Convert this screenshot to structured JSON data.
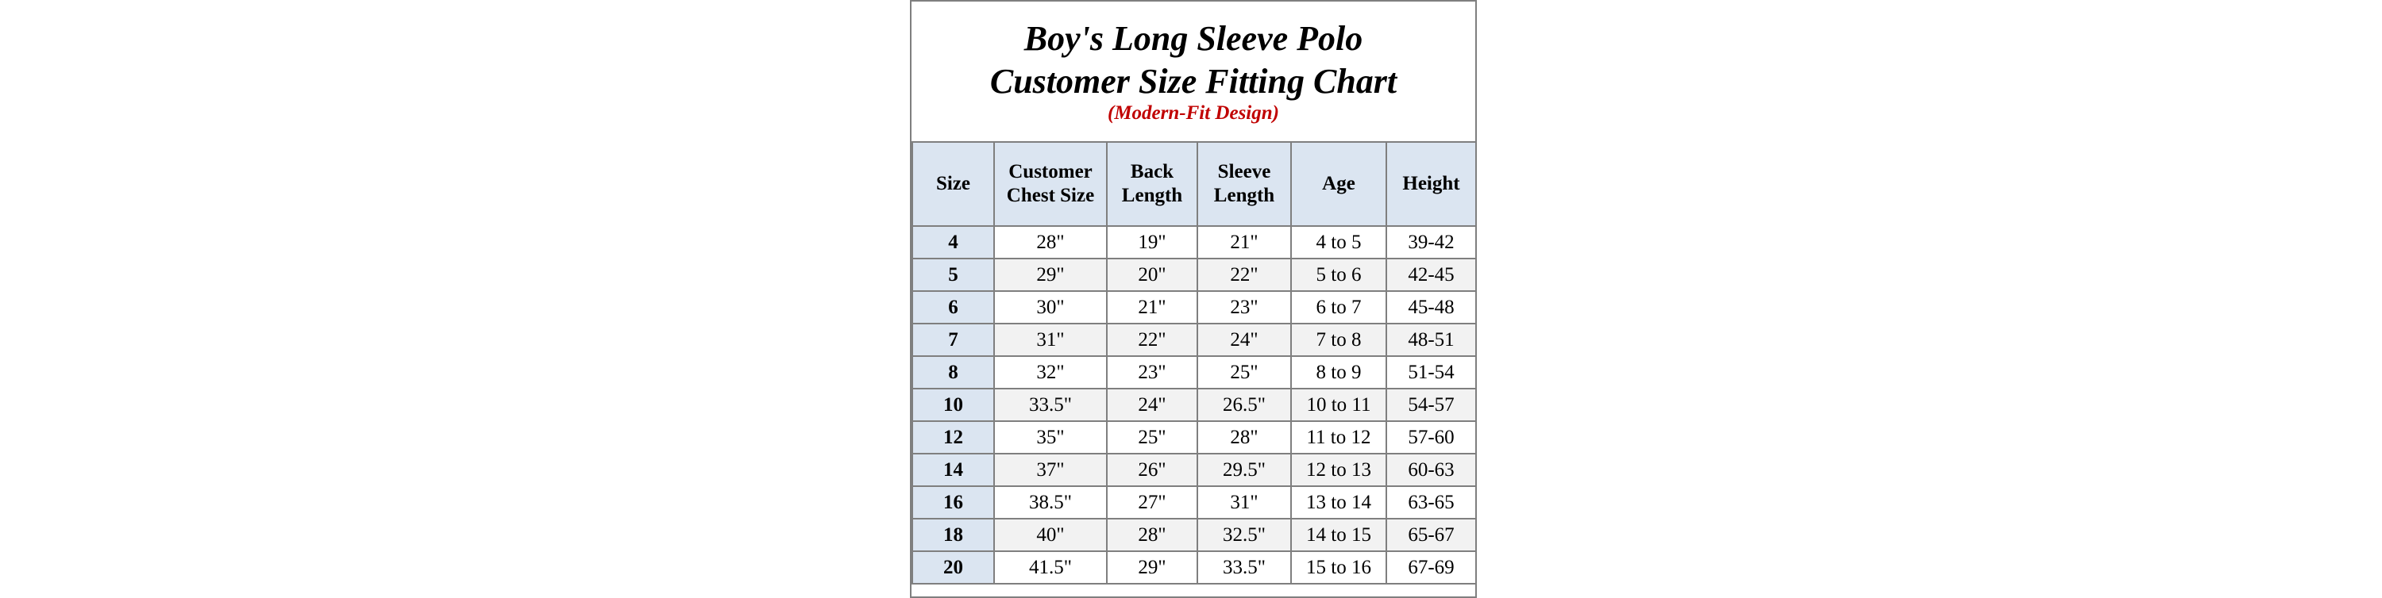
{
  "title": {
    "line1": "Boy's Long Sleeve Polo",
    "line2": "Customer Size Fitting Chart",
    "subtitle": "(Modern-Fit Design)"
  },
  "colors": {
    "subtitle": "#c00000",
    "header_fill": "#dbe5f1",
    "stripe_fill": "#f2f2f2",
    "grid": "#7f7f7f"
  },
  "table": {
    "headers": [
      [
        "Size"
      ],
      [
        "Customer",
        "Chest Size"
      ],
      [
        "Back",
        "Length"
      ],
      [
        "Sleeve",
        "Length"
      ],
      [
        "Age"
      ],
      [
        "Height"
      ]
    ],
    "rows": [
      [
        "4",
        "28\"",
        "19\"",
        "21\"",
        "4 to 5",
        "39-42"
      ],
      [
        "5",
        "29\"",
        "20\"",
        "22\"",
        "5 to 6",
        "42-45"
      ],
      [
        "6",
        "30\"",
        "21\"",
        "23\"",
        "6 to 7",
        "45-48"
      ],
      [
        "7",
        "31\"",
        "22\"",
        "24\"",
        "7 to 8",
        "48-51"
      ],
      [
        "8",
        "32\"",
        "23\"",
        "25\"",
        "8 to 9",
        "51-54"
      ],
      [
        "10",
        "33.5\"",
        "24\"",
        "26.5\"",
        "10 to 11",
        "54-57"
      ],
      [
        "12",
        "35\"",
        "25\"",
        "28\"",
        "11 to 12",
        "57-60"
      ],
      [
        "14",
        "37\"",
        "26\"",
        "29.5\"",
        "12 to 13",
        "60-63"
      ],
      [
        "16",
        "38.5\"",
        "27\"",
        "31\"",
        "13 to 14",
        "63-65"
      ],
      [
        "18",
        "40\"",
        "28\"",
        "32.5\"",
        "14 to 15",
        "65-67"
      ],
      [
        "20",
        "41.5\"",
        "29\"",
        "33.5\"",
        "15 to 16",
        "67-69"
      ]
    ]
  }
}
